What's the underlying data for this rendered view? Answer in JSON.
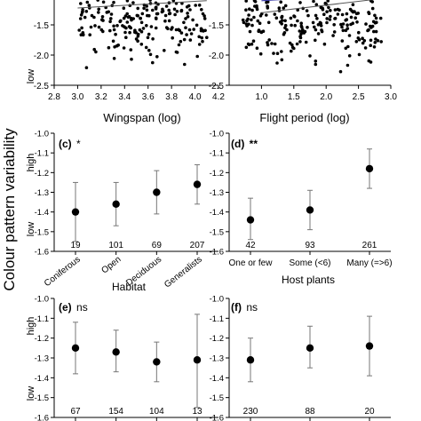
{
  "figure": {
    "ylabel": "Colour pattern variability"
  },
  "chart_data": [
    {
      "id": "a",
      "type": "scatter",
      "xlabel": "Wingspan (log)",
      "xlim": [
        2.8,
        4.2
      ],
      "xticks": [
        "2.8",
        "3.0",
        "3.2",
        "3.4",
        "3.6",
        "3.8",
        "4.0",
        "4.2"
      ],
      "ylim": [
        -2.5,
        -0.5
      ],
      "yticks": [
        "-0.5",
        "-1.0",
        "-1.5",
        "-2.0",
        "-2.5"
      ],
      "low_label": "low",
      "fit_line": {
        "x": [
          3.0,
          4.1
        ],
        "y": [
          -1.08,
          -0.94
        ]
      },
      "ci_lines": [
        {
          "x": [
            3.0,
            4.1
          ],
          "y": [
            -0.94,
            -0.78
          ]
        },
        {
          "x": [
            3.0,
            4.1
          ],
          "y": [
            -1.22,
            -1.1
          ]
        }
      ],
      "points": {
        "x_range": [
          3.0,
          4.1
        ],
        "y_range": [
          -2.3,
          -0.5
        ],
        "count": 240,
        "seed": 11
      }
    },
    {
      "id": "b",
      "type": "scatter",
      "xlabel": "Flight period (log)",
      "xlim": [
        0.5,
        3.0
      ],
      "xticks": [
        "1.0",
        "1.5",
        "2.0",
        "2.5",
        "3.0"
      ],
      "ylim": [
        -2.5,
        -0.5
      ],
      "yticks": [
        "-0.5",
        "-1.0",
        "-1.5",
        "-2.0",
        "-2.5"
      ],
      "fit_line": {
        "x": [
          1.0,
          2.9
        ],
        "y": [
          -1.1,
          -0.98
        ]
      },
      "ci_lines": [
        {
          "x": [
            1.0,
            2.9
          ],
          "y": [
            -1.0,
            -0.88
          ]
        },
        {
          "x": [
            1.0,
            2.9
          ],
          "y": [
            -1.3,
            -1.06
          ]
        }
      ],
      "points": {
        "x_range": [
          0.7,
          2.9
        ],
        "y_range": [
          -2.3,
          -0.5
        ],
        "count": 260,
        "seed": 29
      }
    },
    {
      "id": "c",
      "type": "errorbar",
      "label": "(c)",
      "signif": "*",
      "xlabel": "Habitat",
      "high_label": "high",
      "low_label": "low",
      "ylim": [
        -1.6,
        -1.0
      ],
      "yticks": [
        "-1.0",
        "-1.1",
        "-1.2",
        "-1.3",
        "-1.4",
        "-1.5",
        "-1.6"
      ],
      "categories": [
        "Coniferous",
        "Open",
        "Deciduous",
        "Generalists"
      ],
      "n": [
        "19",
        "101",
        "69",
        "207"
      ],
      "means": [
        -1.4,
        -1.36,
        -1.3,
        -1.26
      ],
      "lower": [
        -1.55,
        -1.47,
        -1.41,
        -1.36
      ],
      "upper": [
        -1.25,
        -1.25,
        -1.19,
        -1.16
      ]
    },
    {
      "id": "d",
      "type": "errorbar",
      "label": "(d)",
      "signif": "**",
      "xlabel": "Host plants",
      "ylim": [
        -1.6,
        -1.0
      ],
      "yticks": [
        "-1.0",
        "-1.1",
        "-1.2",
        "-1.3",
        "-1.4",
        "-1.5",
        "-1.6"
      ],
      "categories": [
        "One or few",
        "Some (<6)",
        "Many (=>6)"
      ],
      "n": [
        "42",
        "93",
        "261"
      ],
      "means": [
        -1.44,
        -1.39,
        -1.18
      ],
      "lower": [
        -1.54,
        -1.49,
        -1.28
      ],
      "upper": [
        -1.33,
        -1.29,
        -1.08
      ]
    },
    {
      "id": "e",
      "type": "errorbar",
      "label": "(e)",
      "signif": "ns",
      "high_label": "high",
      "low_label": "low",
      "ylim": [
        -1.6,
        -1.0
      ],
      "yticks": [
        "-1.0",
        "-1.1",
        "-1.2",
        "-1.3",
        "-1.4",
        "-1.5",
        "-1.6"
      ],
      "n": [
        "67",
        "154",
        "104",
        "13"
      ],
      "means": [
        -1.25,
        -1.27,
        -1.32,
        -1.31
      ],
      "lower": [
        -1.38,
        -1.37,
        -1.42,
        -1.55
      ],
      "upper": [
        -1.12,
        -1.16,
        -1.22,
        -1.08
      ]
    },
    {
      "id": "f",
      "type": "errorbar",
      "label": "(f)",
      "signif": "ns",
      "ylim": [
        -1.6,
        -1.0
      ],
      "yticks": [
        "-1.0",
        "-1.1",
        "-1.2",
        "-1.3",
        "-1.4",
        "-1.5",
        "-1.6"
      ],
      "n": [
        "230",
        "88",
        "20"
      ],
      "means": [
        -1.31,
        -1.25,
        -1.24
      ],
      "lower": [
        -1.42,
        -1.35,
        -1.39
      ],
      "upper": [
        -1.2,
        -1.14,
        -1.09
      ]
    }
  ]
}
